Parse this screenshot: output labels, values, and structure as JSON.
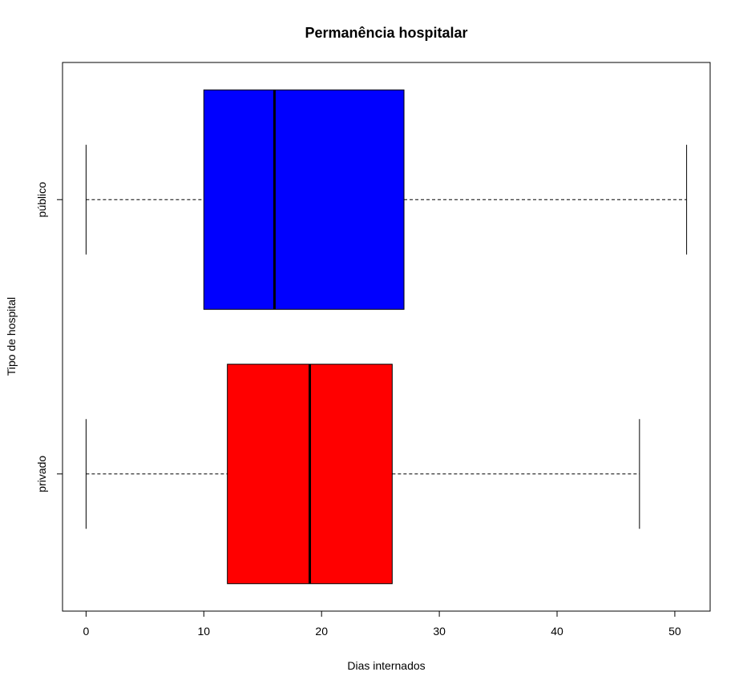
{
  "chart_data": {
    "type": "boxplot",
    "orientation": "horizontal",
    "title": "Permanência hospitalar",
    "xlabel": "Dias internados",
    "ylabel": "Tipo de hospital",
    "xlim": [
      -2,
      53
    ],
    "xticks": [
      0,
      10,
      20,
      30,
      40,
      50
    ],
    "grid": false,
    "groups": [
      {
        "label": "privado",
        "color": "#FF0000",
        "min": 0,
        "q1": 12,
        "median": 19,
        "q3": 26,
        "max": 47
      },
      {
        "label": "público",
        "color": "#0000FF",
        "min": 0,
        "q1": 10,
        "median": 16,
        "q3": 27,
        "max": 51
      }
    ]
  }
}
